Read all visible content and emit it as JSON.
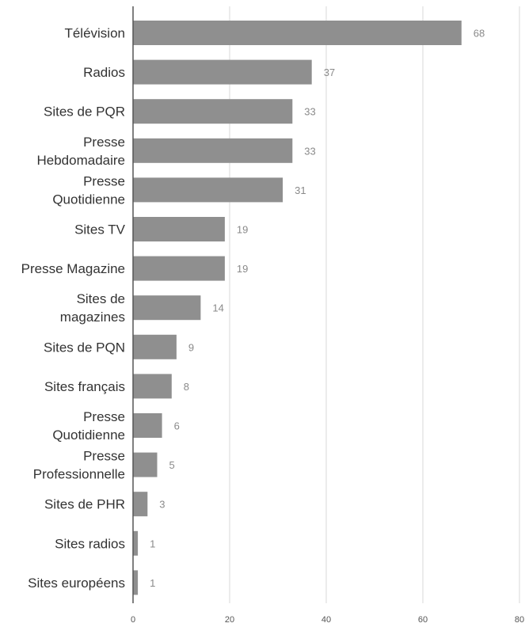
{
  "chart_data": {
    "type": "bar",
    "orientation": "horizontal",
    "title": "",
    "xlabel": "",
    "ylabel": "",
    "xlim": [
      0,
      80
    ],
    "xticks": [
      0,
      20,
      40,
      60,
      80
    ],
    "grid": true,
    "bar_color": "#8f8f8f",
    "categories": [
      [
        "Télévision"
      ],
      [
        "Radios"
      ],
      [
        "Sites de PQR"
      ],
      [
        "Presse",
        "Hebdomadaire"
      ],
      [
        "Presse",
        "Quotidienne"
      ],
      [
        "Sites TV"
      ],
      [
        "Presse Magazine"
      ],
      [
        "Sites de",
        "magazines"
      ],
      [
        "Sites de PQN"
      ],
      [
        "Sites français"
      ],
      [
        "Presse",
        "Quotidienne"
      ],
      [
        "Presse",
        "Professionnelle"
      ],
      [
        "Sites de PHR"
      ],
      [
        "Sites radios"
      ],
      [
        "Sites européens"
      ]
    ],
    "values": [
      68,
      37,
      33,
      33,
      31,
      19,
      19,
      14,
      9,
      8,
      6,
      5,
      3,
      1,
      1
    ]
  }
}
